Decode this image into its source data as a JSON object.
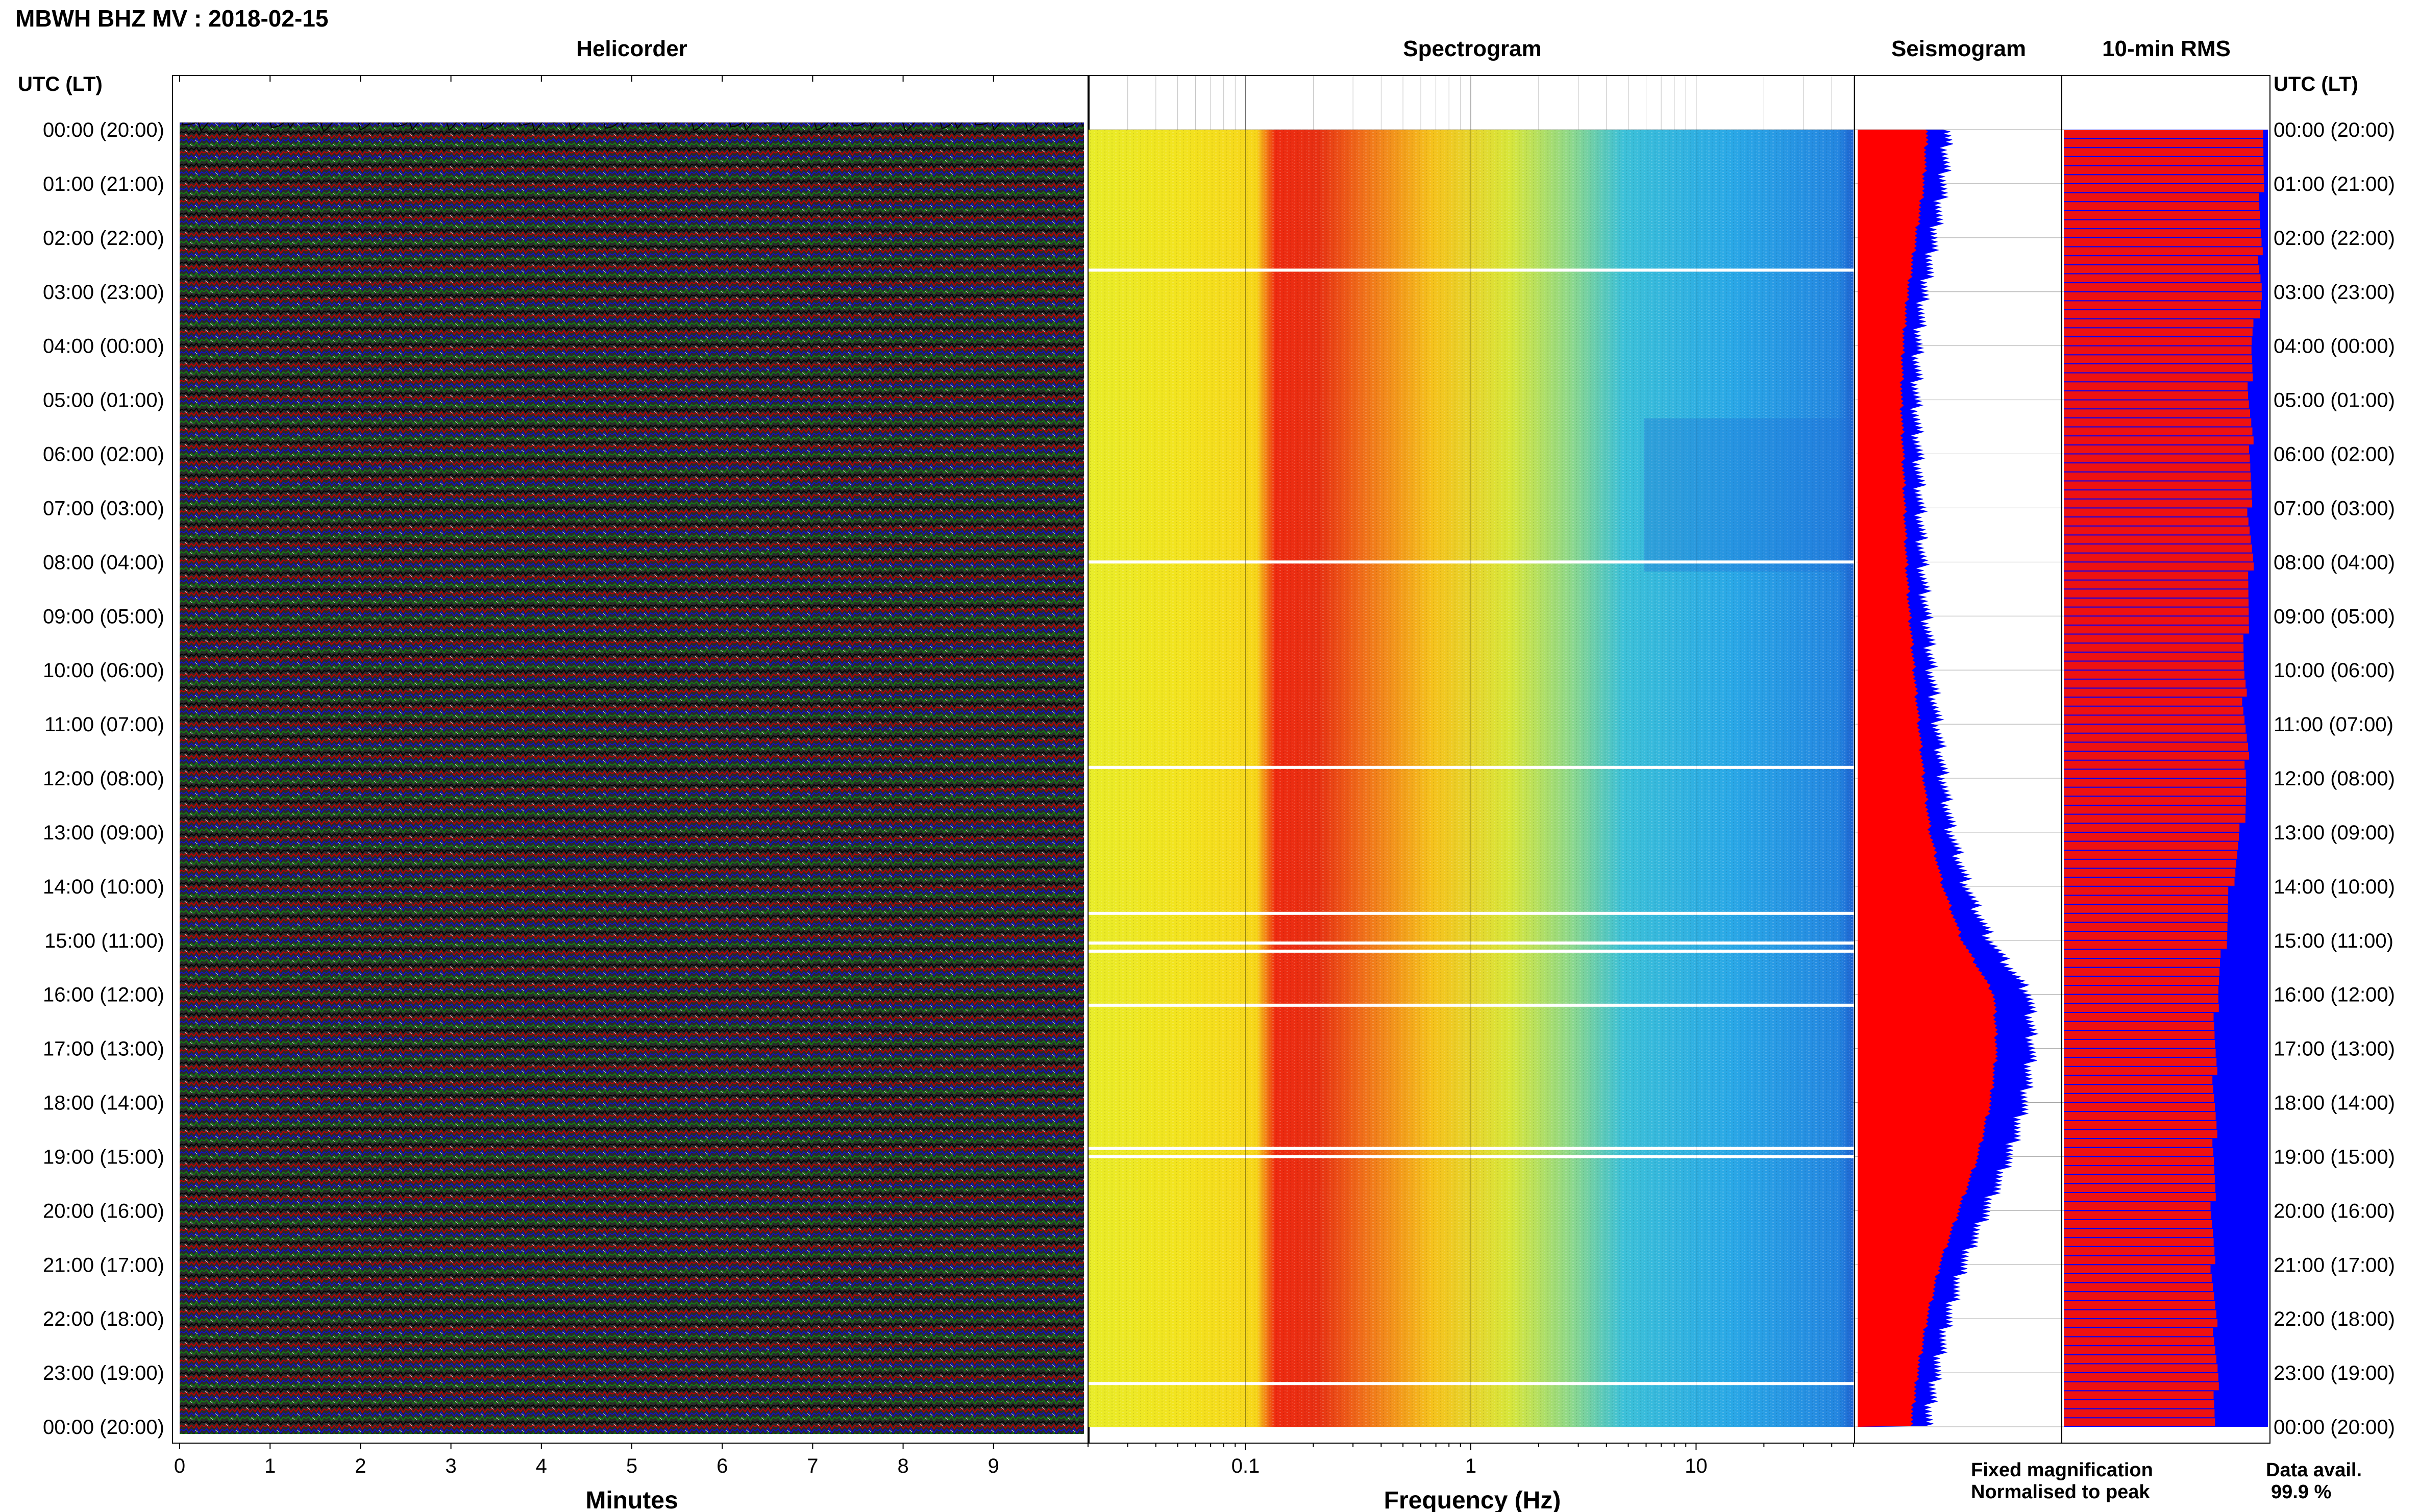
{
  "title": "MBWH BHZ MV : 2018-02-15",
  "panels": {
    "helicorder": "Helicorder",
    "spectrogram": "Spectrogram",
    "seismogram": "Seismogram",
    "rms": "10-min RMS"
  },
  "time_axis_label": "UTC (LT)",
  "time_labels": [
    "00:00 (20:00)",
    "01:00 (21:00)",
    "02:00 (22:00)",
    "03:00 (23:00)",
    "04:00 (00:00)",
    "05:00 (01:00)",
    "06:00 (02:00)",
    "07:00 (03:00)",
    "08:00 (04:00)",
    "09:00 (05:00)",
    "10:00 (06:00)",
    "11:00 (07:00)",
    "12:00 (08:00)",
    "13:00 (09:00)",
    "14:00 (10:00)",
    "15:00 (11:00)",
    "16:00 (12:00)",
    "17:00 (13:00)",
    "18:00 (14:00)",
    "19:00 (15:00)",
    "20:00 (16:00)",
    "21:00 (17:00)",
    "22:00 (18:00)",
    "23:00 (19:00)",
    "00:00 (20:00)"
  ],
  "legend": {
    "fixed": "Fixed magnification",
    "normalised": "Normalised to peak",
    "fixed_color": "#0000ff",
    "normalised_color": "#ff0000"
  },
  "data_avail": {
    "label": "Data avail.",
    "value": "99.9 %"
  },
  "chart_data": [
    {
      "type": "line",
      "name": "helicorder",
      "title": "Helicorder",
      "xlabel": "Minutes",
      "ylabel": "UTC (LT)",
      "x_ticks": [
        "0",
        "1",
        "2",
        "3",
        "4",
        "5",
        "6",
        "7",
        "8",
        "9"
      ],
      "xlim": [
        0,
        10
      ],
      "rows": 144,
      "row_minutes": 10,
      "trace_colors": [
        "#000000",
        "#cc0000",
        "#0000cc",
        "#008000"
      ]
    },
    {
      "type": "heatmap",
      "name": "spectrogram",
      "title": "Spectrogram",
      "xlabel": "Frequency (Hz)",
      "x_ticks": [
        "0.1",
        "1",
        "10"
      ],
      "xscale": "log",
      "xlim": [
        0.02,
        50
      ],
      "gap_hours": [
        2.6,
        8.0,
        11.8,
        14.5,
        15.05,
        15.2,
        16.2,
        18.85,
        19.0,
        23.2
      ]
    },
    {
      "type": "area",
      "name": "seismogram",
      "title": "Seismogram",
      "series": [
        {
          "name": "Fixed magnification",
          "color": "#0000ff"
        },
        {
          "name": "Normalised to peak",
          "color": "#ff0000"
        }
      ],
      "envelope_hours": [
        0,
        1,
        2,
        3,
        4,
        5,
        6,
        7,
        8,
        9,
        10,
        11,
        12,
        13,
        14,
        15,
        16,
        17,
        18,
        19,
        20,
        21,
        22,
        23,
        24
      ],
      "envelope_rel": [
        0.42,
        0.4,
        0.35,
        0.3,
        0.27,
        0.26,
        0.27,
        0.28,
        0.29,
        0.31,
        0.34,
        0.37,
        0.4,
        0.44,
        0.52,
        0.64,
        0.84,
        0.86,
        0.82,
        0.74,
        0.62,
        0.5,
        0.42,
        0.36,
        0.32
      ]
    },
    {
      "type": "bar",
      "name": "rms",
      "title": "10-min RMS",
      "bars": 144,
      "bar_hours": [
        0,
        1,
        2,
        3,
        4,
        5,
        6,
        7,
        8,
        9,
        10,
        11,
        12,
        13,
        14,
        15,
        16,
        17,
        18,
        19,
        20,
        21,
        22,
        23,
        24
      ],
      "rel_levels": [
        0.99,
        0.97,
        0.96,
        0.97,
        0.92,
        0.91,
        0.92,
        0.91,
        0.92,
        0.9,
        0.88,
        0.89,
        0.9,
        0.87,
        0.82,
        0.79,
        0.75,
        0.74,
        0.74,
        0.74,
        0.73,
        0.73,
        0.74,
        0.75,
        0.74
      ]
    }
  ]
}
